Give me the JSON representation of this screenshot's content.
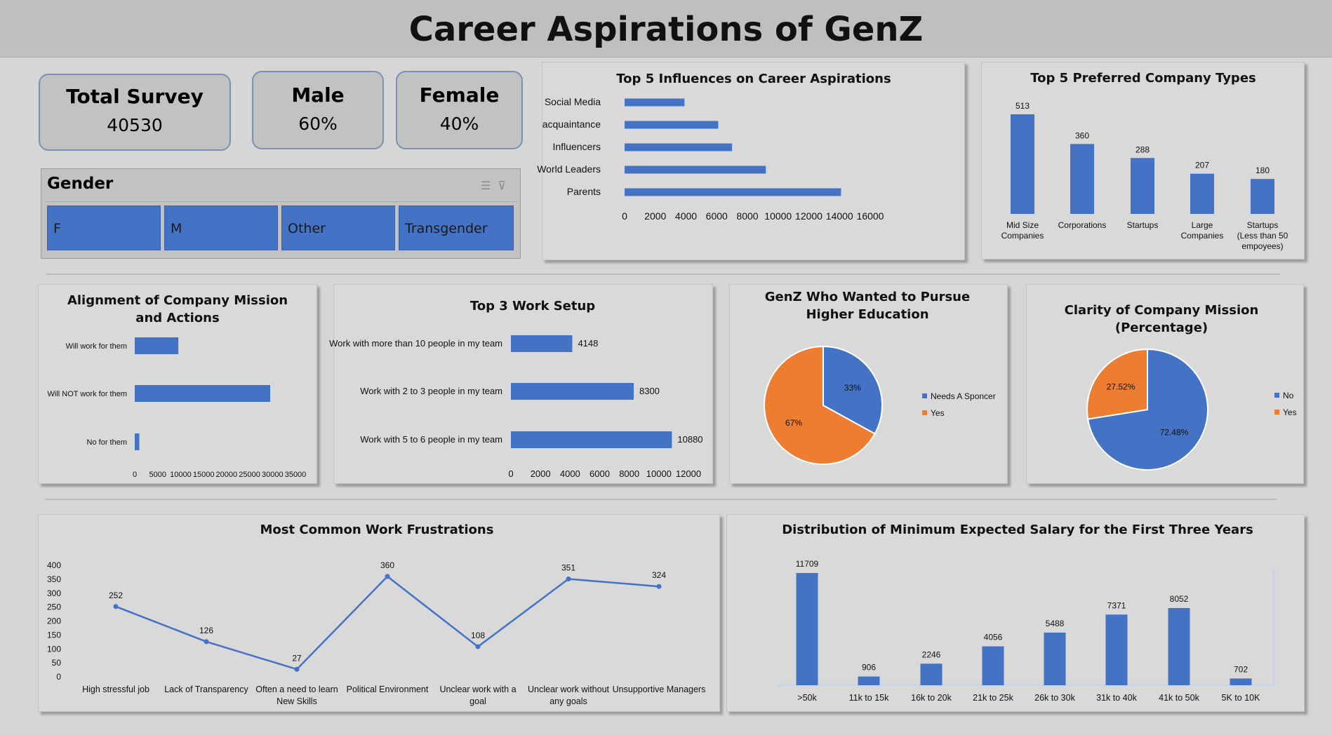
{
  "title": "Career Aspirations of GenZ",
  "kpis": {
    "total": {
      "label": "Total Survey",
      "value": "40530"
    },
    "male": {
      "label": "Male",
      "value": "60%"
    },
    "female": {
      "label": "Female",
      "value": "40%"
    }
  },
  "slicer": {
    "title": "Gender",
    "options": [
      "F",
      "M",
      "Other",
      "Transgender"
    ]
  },
  "colors": {
    "blue": "#4472c4",
    "orange": "#ed7d31",
    "panel": "#d9d9d9",
    "title_bar": "#bfbfbf"
  },
  "chart_data": [
    {
      "id": "influences",
      "type": "bar",
      "orientation": "horizontal",
      "title": "Top 5 Influences on Career Aspirations",
      "categories": [
        "Social Media",
        "acquaintance",
        "Influencers",
        "World Leaders",
        "Parents"
      ],
      "values": [
        3900,
        6100,
        7000,
        9200,
        14100
      ],
      "xlim": [
        0,
        16000
      ],
      "xticks": [
        0,
        2000,
        4000,
        6000,
        8000,
        10000,
        12000,
        14000,
        16000
      ],
      "xticklabels": [
        "0",
        "2000",
        "4000",
        "6000",
        "8000",
        "10000",
        "12000",
        "14000",
        "16000"
      ],
      "grid": false
    },
    {
      "id": "company_types",
      "type": "bar",
      "title": "Top 5 Preferred Company Types",
      "categories": [
        "Mid Size Companies",
        "Corporations",
        "Startups",
        "Large Companies",
        "Startups (Less than 50 empoyees)"
      ],
      "values": [
        513,
        360,
        288,
        207,
        180
      ],
      "data_labels": [
        "513",
        "360",
        "288",
        "207",
        "180"
      ],
      "ylim": [
        0,
        560
      ]
    },
    {
      "id": "mission_alignment",
      "type": "bar",
      "orientation": "horizontal",
      "title": "Alignment of Company Mission and Actions",
      "categories": [
        "Will work for them",
        "Will NOT work for them",
        "No for them"
      ],
      "values": [
        9500,
        29500,
        1000
      ],
      "xlim": [
        0,
        35000
      ],
      "xticks": [
        0,
        5000,
        10000,
        15000,
        20000,
        25000,
        30000,
        35000
      ],
      "xticklabels": [
        "0",
        "5000",
        "10000",
        "15000",
        "20000",
        "25000",
        "30000",
        "35000"
      ]
    },
    {
      "id": "work_setup",
      "type": "bar",
      "orientation": "horizontal",
      "title": "Top 3 Work Setup",
      "categories": [
        "Work with more than 10 people in my team",
        "Work with 2 to 3 people in my team",
        "Work with 5 to 6 people in my team"
      ],
      "values": [
        4148,
        8300,
        10880
      ],
      "data_labels": [
        "4148",
        "8300",
        "10880"
      ],
      "xlim": [
        0,
        12000
      ],
      "xticks": [
        0,
        2000,
        4000,
        6000,
        8000,
        10000,
        12000
      ],
      "xticklabels": [
        "0",
        "2000",
        "4000",
        "6000",
        "8000",
        "10000",
        "12000"
      ]
    },
    {
      "id": "higher_education",
      "type": "pie",
      "title": "GenZ Who Wanted to Pursue Higher Education",
      "labels": [
        "Needs A Sponcer",
        "Yes"
      ],
      "values": [
        33,
        67
      ],
      "value_labels": [
        "33%",
        "67%"
      ],
      "colors": [
        "#4472c4",
        "#ed7d31"
      ],
      "legend": "right"
    },
    {
      "id": "mission_clarity",
      "type": "pie",
      "title": "Clarity of Company Mission (Percentage)",
      "labels": [
        "No",
        "Yes"
      ],
      "values": [
        72.48,
        27.52
      ],
      "value_labels": [
        "72.48%",
        "27.52%"
      ],
      "colors": [
        "#4472c4",
        "#ed7d31"
      ],
      "legend": "right"
    },
    {
      "id": "frustrations",
      "type": "line",
      "title": "Most Common Work Frustrations",
      "categories": [
        "High stressful job",
        "Lack of Transparency",
        "Often a need to learn New Skills",
        "Political Environment",
        "Unclear work with a goal",
        "Unclear work without any goals",
        "Unsupportive Managers"
      ],
      "values": [
        252,
        126,
        27,
        360,
        108,
        351,
        324
      ],
      "data_labels": [
        "252",
        "126",
        "27",
        "360",
        "108",
        "351",
        "324"
      ],
      "ylim": [
        0,
        400
      ],
      "yticks": [
        0,
        50,
        100,
        150,
        200,
        250,
        300,
        350,
        400
      ],
      "yticklabels": [
        "0",
        "50",
        "100",
        "150",
        "200",
        "250",
        "300",
        "350",
        "400"
      ]
    },
    {
      "id": "salary",
      "type": "bar",
      "title": "Distribution of Minimum Expected Salary for the First Three Years",
      "categories": [
        ">50k",
        "11k to 15k",
        "16k to 20k",
        "21k to 25k",
        "26k to 30k",
        "31k to 40k",
        "41k to 50k",
        "5K to 10K"
      ],
      "values": [
        11709,
        906,
        2246,
        4056,
        5488,
        7371,
        8052,
        702
      ],
      "data_labels": [
        "11709",
        "906",
        "2246",
        "4056",
        "5488",
        "7371",
        "8052",
        "702"
      ],
      "ylim": [
        0,
        13000
      ]
    }
  ]
}
